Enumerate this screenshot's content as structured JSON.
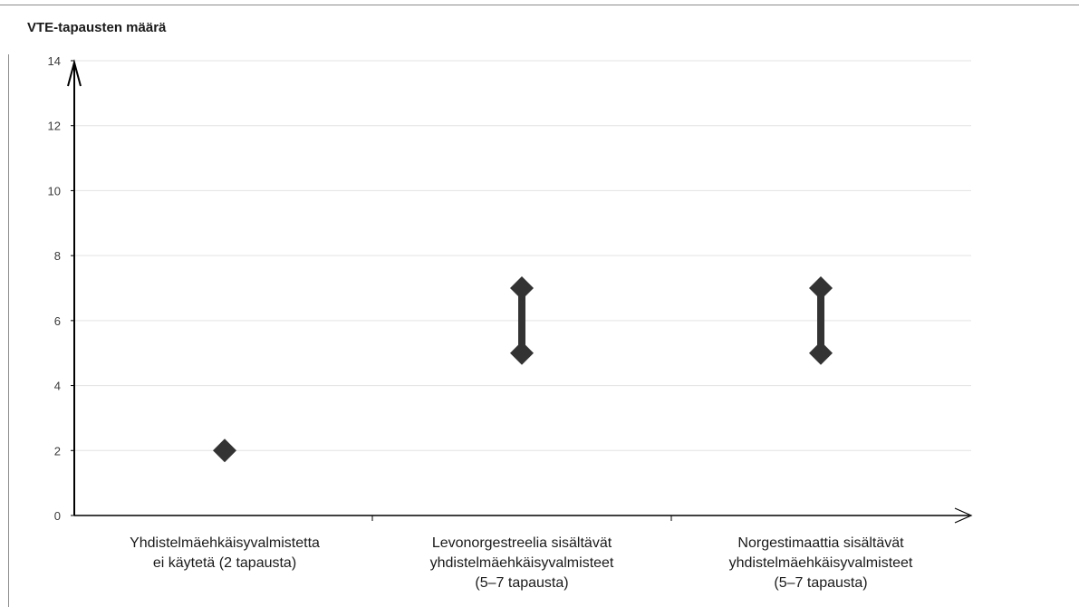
{
  "chart_data": {
    "type": "scatter",
    "title": "VTE-tapausten määrä",
    "xlabel": "",
    "ylabel": "",
    "ylim": [
      0,
      14
    ],
    "yticks": [
      0,
      2,
      4,
      6,
      8,
      10,
      12,
      14
    ],
    "grid": true,
    "categories": [
      [
        "Yhdistelmäehkäisyvalmistetta",
        "ei käytetä (2 tapausta)"
      ],
      [
        "Levonorgestreelia sisältävät",
        "yhdistelmäehkäisyvalmisteet",
        "(5–7 tapausta)"
      ],
      [
        "Norgestimaattia sisältävät",
        "yhdistelmäehkäisyvalmisteet",
        "(5–7 tapausta)"
      ]
    ],
    "ranges": [
      {
        "low": 2,
        "high": 2
      },
      {
        "low": 5,
        "high": 7
      },
      {
        "low": 5,
        "high": 7
      }
    ],
    "colors": {
      "marker": "#333333",
      "grid": "#e3e3e3",
      "axis": "#000000"
    }
  }
}
